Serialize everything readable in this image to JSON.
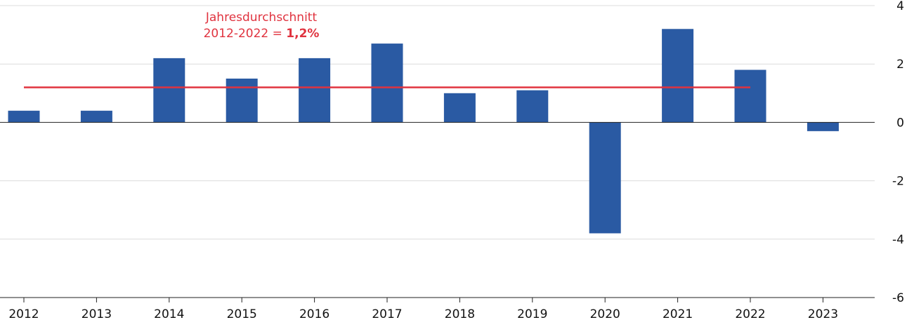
{
  "chart_data": {
    "type": "bar",
    "title": "",
    "xlabel": "",
    "ylabel": "",
    "categories": [
      "2012",
      "2013",
      "2014",
      "2015",
      "2016",
      "2017",
      "2018",
      "2019",
      "2020",
      "2021",
      "2022",
      "2023"
    ],
    "values": [
      0.4,
      0.4,
      2.2,
      1.5,
      2.2,
      2.7,
      1.0,
      1.1,
      -3.8,
      3.2,
      1.8,
      -0.3
    ],
    "ylim": [
      -6,
      4
    ],
    "yticks": [
      4,
      2,
      0,
      -2,
      -4,
      -6
    ],
    "ytick_labels": [
      "4",
      "2",
      "0",
      "-2",
      "-4",
      "-6"
    ],
    "y_axis_position": "right",
    "grid": true,
    "bar_color": "#2a5aa3",
    "reference_line": {
      "value": 1.2,
      "from_category": "2012",
      "to_category": "2022",
      "color": "#e0333f"
    },
    "annotation": {
      "line1": "Jahresdurchschnitt",
      "line2_prefix": "2012-2022 = ",
      "line2_bold": "1,2%",
      "color": "#e0333f"
    }
  }
}
